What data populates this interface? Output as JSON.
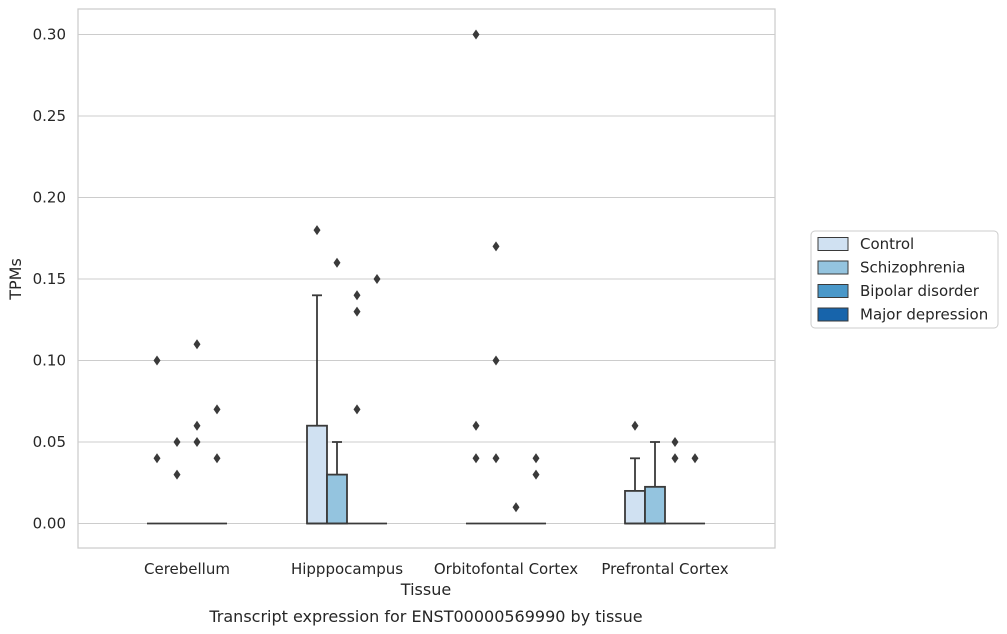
{
  "chart_data": {
    "type": "box",
    "title": "",
    "caption": "Transcript expression for ENST00000569990 by tissue",
    "xlabel": "Tissue",
    "ylabel": "TPMs",
    "ylim": [
      -0.015,
      0.315
    ],
    "yticks": [
      0.0,
      0.05,
      0.1,
      0.15,
      0.2,
      0.25,
      0.3
    ],
    "ytick_labels": [
      "0.00",
      "0.05",
      "0.10",
      "0.15",
      "0.20",
      "0.25",
      "0.30"
    ],
    "grid": "horizontal",
    "legend_position": "right",
    "categories": [
      "Cerebellum",
      "Hipppocampus",
      "Orbitofontal Cortex",
      "Prefrontal Cortex"
    ],
    "series": [
      {
        "name": "Control",
        "color": "#d0e1f2",
        "boxes": [
          {
            "q1": 0,
            "median": 0,
            "q3": 0,
            "whisker_low": 0,
            "whisker_high": 0,
            "outliers": [
              0.1,
              0.04
            ]
          },
          {
            "q1": 0,
            "median": 0,
            "q3": 0.06,
            "whisker_low": 0,
            "whisker_high": 0.14,
            "outliers": [
              0.18
            ]
          },
          {
            "q1": 0,
            "median": 0,
            "q3": 0,
            "whisker_low": 0,
            "whisker_high": 0,
            "outliers": [
              0.3,
              0.06,
              0.04
            ]
          },
          {
            "q1": 0,
            "median": 0,
            "q3": 0.02,
            "whisker_low": 0,
            "whisker_high": 0.04,
            "outliers": [
              0.06
            ]
          }
        ]
      },
      {
        "name": "Schizophrenia",
        "color": "#94c4df",
        "boxes": [
          {
            "q1": 0,
            "median": 0,
            "q3": 0,
            "whisker_low": 0,
            "whisker_high": 0,
            "outliers": [
              0.05,
              0.03
            ]
          },
          {
            "q1": 0,
            "median": 0,
            "q3": 0.03,
            "whisker_low": 0,
            "whisker_high": 0.05,
            "outliers": [
              0.16
            ]
          },
          {
            "q1": 0,
            "median": 0,
            "q3": 0,
            "whisker_low": 0,
            "whisker_high": 0,
            "outliers": [
              0.17,
              0.1,
              0.04
            ]
          },
          {
            "q1": 0,
            "median": 0,
            "q3": 0.0225,
            "whisker_low": 0,
            "whisker_high": 0.05,
            "outliers": []
          }
        ]
      },
      {
        "name": "Bipolar disorder",
        "color": "#4a98c9",
        "boxes": [
          {
            "q1": 0,
            "median": 0,
            "q3": 0,
            "whisker_low": 0,
            "whisker_high": 0,
            "outliers": [
              0.11,
              0.06,
              0.05
            ]
          },
          {
            "q1": 0,
            "median": 0,
            "q3": 0,
            "whisker_low": 0,
            "whisker_high": 0,
            "outliers": [
              0.14,
              0.13,
              0.07
            ]
          },
          {
            "q1": 0,
            "median": 0,
            "q3": 0,
            "whisker_low": 0,
            "whisker_high": 0,
            "outliers": [
              0.01
            ]
          },
          {
            "q1": 0,
            "median": 0,
            "q3": 0,
            "whisker_low": 0,
            "whisker_high": 0,
            "outliers": [
              0.05,
              0.04
            ]
          }
        ]
      },
      {
        "name": "Major depression",
        "color": "#1764ab",
        "boxes": [
          {
            "q1": 0,
            "median": 0,
            "q3": 0,
            "whisker_low": 0,
            "whisker_high": 0,
            "outliers": [
              0.07,
              0.04
            ]
          },
          {
            "q1": 0,
            "median": 0,
            "q3": 0,
            "whisker_low": 0,
            "whisker_high": 0,
            "outliers": [
              0.15
            ]
          },
          {
            "q1": 0,
            "median": 0,
            "q3": 0,
            "whisker_low": 0,
            "whisker_high": 0,
            "outliers": [
              0.04,
              0.03
            ]
          },
          {
            "q1": 0,
            "median": 0,
            "q3": 0,
            "whisker_low": 0,
            "whisker_high": 0,
            "outliers": [
              0.04
            ]
          }
        ]
      }
    ]
  }
}
